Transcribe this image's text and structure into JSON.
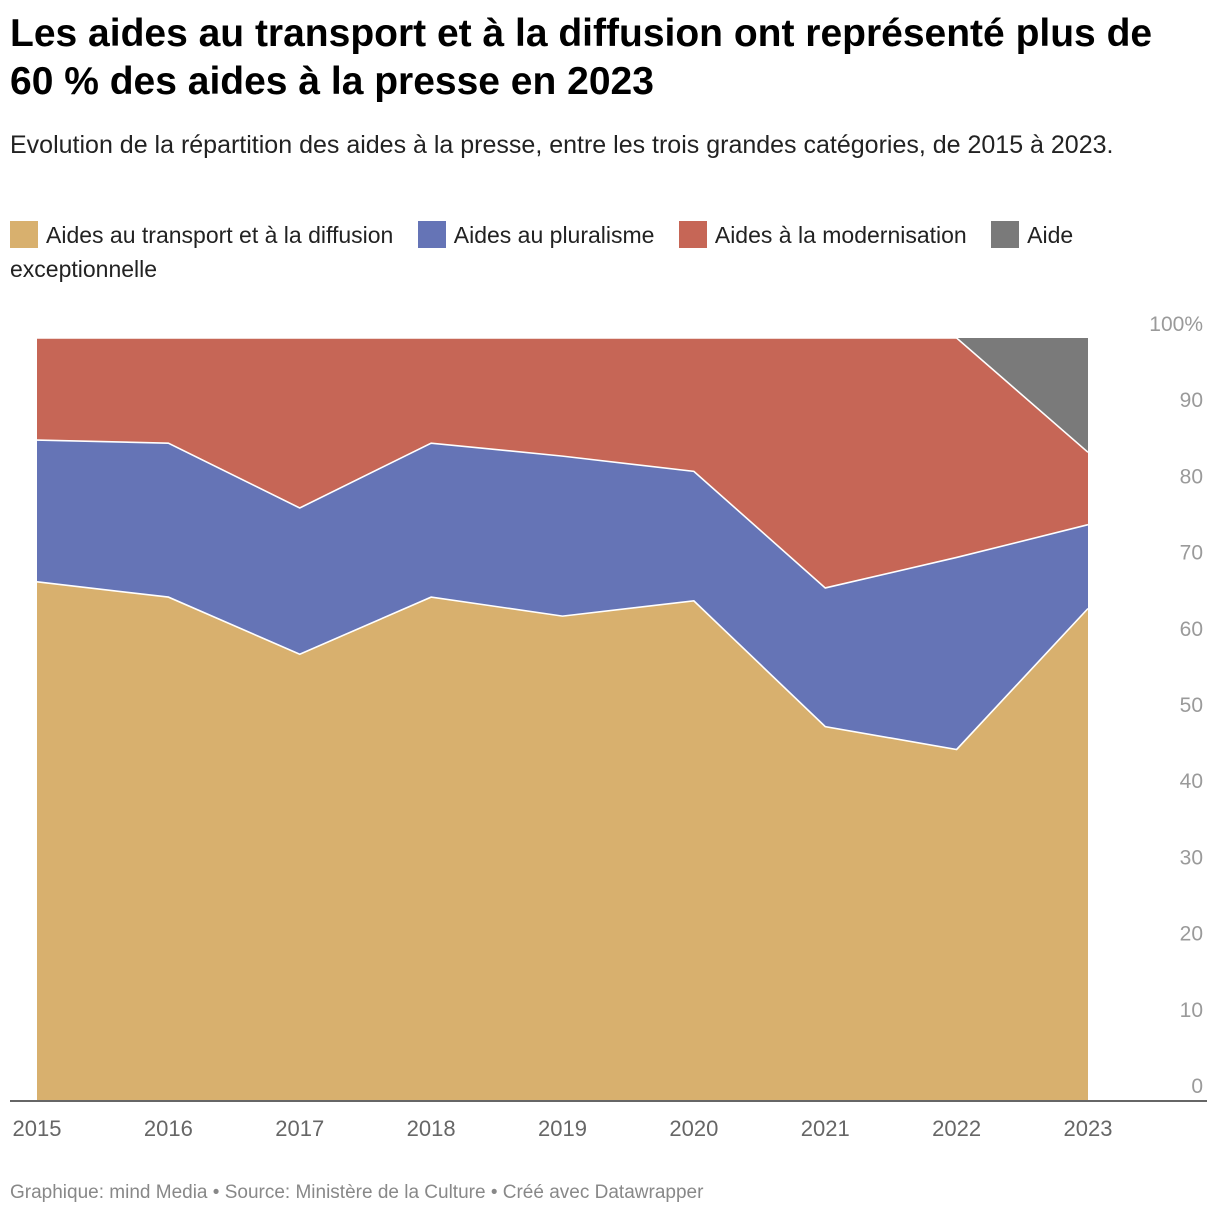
{
  "header": {
    "title": "Les aides au transport et à la diffusion ont représenté plus de 60 % des aides à la presse en 2023",
    "subtitle": "Evolution de la répartition des aides à la presse, entre les trois grandes catégories, de 2015 à 2023."
  },
  "legend": [
    {
      "label": "Aides au transport et à la diffusion",
      "color": "#d8b06e"
    },
    {
      "label": "Aides au pluralisme",
      "color": "#6574b6"
    },
    {
      "label": "Aides à la modernisation",
      "color": "#c66656"
    },
    {
      "label": "Aide exceptionnelle",
      "color": "#7a7a7a"
    }
  ],
  "footer": {
    "text": "Graphique: mind Media • Source: Ministère de la Culture • Créé avec Datawrapper"
  },
  "chart_data": {
    "type": "area",
    "stacked": true,
    "x": [
      "2015",
      "2016",
      "2017",
      "2018",
      "2019",
      "2020",
      "2021",
      "2022",
      "2023"
    ],
    "series": [
      {
        "name": "Aides au transport et à la diffusion",
        "color": "#d8b06e",
        "values": [
          68,
          66,
          58.5,
          66,
          63.5,
          65.5,
          49,
          46,
          64.5
        ]
      },
      {
        "name": "Aides au pluralisme",
        "color": "#6574b6",
        "values": [
          18.6,
          20.2,
          19.2,
          20.2,
          21,
          17,
          18.2,
          25.2,
          11
        ]
      },
      {
        "name": "Aides à la modernisation",
        "color": "#c66656",
        "values": [
          13.4,
          13.8,
          22.3,
          13.8,
          15.5,
          17.5,
          32.8,
          28.8,
          9.5
        ]
      },
      {
        "name": "Aide exceptionnelle",
        "color": "#7a7a7a",
        "values": [
          0,
          0,
          0,
          0,
          0,
          0,
          0,
          0,
          15
        ]
      }
    ],
    "y_ticks": [
      "0",
      "10",
      "20",
      "30",
      "40",
      "50",
      "60",
      "70",
      "80",
      "90",
      "100%"
    ],
    "ylim": [
      0,
      100
    ],
    "grid": false,
    "legend_position": "top",
    "y_axis_side": "right"
  }
}
